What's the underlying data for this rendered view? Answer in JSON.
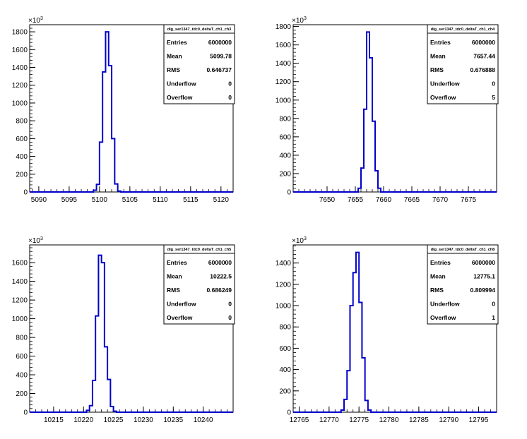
{
  "chart_data": [
    {
      "type": "histogram",
      "title": "dig_ser1347_tdc0_deltaT_ch1_ch3",
      "exponent_label": "×10",
      "exponent_sup": "3",
      "xlim": [
        5088.5,
        5122
      ],
      "ylim": [
        0,
        1880
      ],
      "x_ticks": [
        5090,
        5095,
        5100,
        5105,
        5110,
        5115,
        5120
      ],
      "y_ticks": [
        0,
        200,
        400,
        600,
        800,
        1000,
        1200,
        1400,
        1600,
        1800
      ],
      "bin_width": 0.5,
      "bins_start": 5098,
      "values": [
        0,
        0,
        20,
        85,
        560,
        1350,
        1800,
        1420,
        600,
        90,
        10,
        0,
        0
      ],
      "stats": [
        {
          "label": "Entries",
          "value": "6000000"
        },
        {
          "label": "Mean",
          "value": "5099.78"
        },
        {
          "label": "RMS",
          "value": "0.646737"
        },
        {
          "label": "Underflow",
          "value": "0"
        },
        {
          "label": "Overflow",
          "value": "0"
        }
      ]
    },
    {
      "type": "histogram",
      "title": "dig_ser1347_tdc0_deltaT_ch1_ch4",
      "exponent_label": "×10",
      "exponent_sup": "3",
      "xlim": [
        7644,
        7680
      ],
      "ylim": [
        0,
        1820
      ],
      "x_ticks": [
        7650,
        7655,
        7660,
        7665,
        7670,
        7675
      ],
      "y_ticks": [
        0,
        200,
        400,
        600,
        800,
        1000,
        1200,
        1400,
        1600,
        1800
      ],
      "bin_width": 0.5,
      "bins_start": 7655,
      "values": [
        0,
        40,
        260,
        900,
        1740,
        1460,
        770,
        230,
        40,
        0,
        0
      ],
      "stats": [
        {
          "label": "Entries",
          "value": "6000000"
        },
        {
          "label": "Mean",
          "value": "7657.44"
        },
        {
          "label": "RMS",
          "value": "0.676888"
        },
        {
          "label": "Underflow",
          "value": "0"
        },
        {
          "label": "Overflow",
          "value": "5"
        }
      ]
    },
    {
      "type": "histogram",
      "title": "dig_ser1347_tdc0_deltaT_ch1_ch5",
      "exponent_label": "×10",
      "exponent_sup": "3",
      "xlim": [
        10211,
        10245
      ],
      "ylim": [
        0,
        1790
      ],
      "x_ticks": [
        10215,
        10220,
        10225,
        10230,
        10235,
        10240
      ],
      "y_ticks": [
        0,
        200,
        400,
        600,
        800,
        1000,
        1200,
        1400,
        1600
      ],
      "bin_width": 0.5,
      "bins_start": 10220,
      "values": [
        0,
        20,
        70,
        340,
        1030,
        1680,
        1600,
        700,
        350,
        60,
        10,
        0,
        0
      ],
      "stats": [
        {
          "label": "Entries",
          "value": "6000000"
        },
        {
          "label": "Mean",
          "value": "10222.5"
        },
        {
          "label": "RMS",
          "value": "0.686249"
        },
        {
          "label": "Underflow",
          "value": "0"
        },
        {
          "label": "Overflow",
          "value": "0"
        }
      ]
    },
    {
      "type": "histogram",
      "title": "dig_ser1347_tdc0_deltaT_ch1_ch8",
      "exponent_label": "×10",
      "exponent_sup": "3",
      "xlim": [
        12764,
        12798
      ],
      "ylim": [
        0,
        1570
      ],
      "x_ticks": [
        12765,
        12770,
        12775,
        12780,
        12785,
        12790,
        12795
      ],
      "y_ticks": [
        0,
        200,
        400,
        600,
        800,
        1000,
        1200,
        1400
      ],
      "bin_width": 0.5,
      "bins_start": 12771.5,
      "values": [
        0,
        20,
        120,
        390,
        1000,
        1310,
        1500,
        1030,
        510,
        110,
        20,
        0,
        0
      ],
      "stats": [
        {
          "label": "Entries",
          "value": "6000000"
        },
        {
          "label": "Mean",
          "value": "12775.1"
        },
        {
          "label": "RMS",
          "value": "0.809994"
        },
        {
          "label": "Underflow",
          "value": "0"
        },
        {
          "label": "Overflow",
          "value": "1"
        }
      ]
    }
  ],
  "colors": {
    "histogram_line": "#0000cc",
    "axis": "#000000",
    "background": "#ffffff"
  }
}
